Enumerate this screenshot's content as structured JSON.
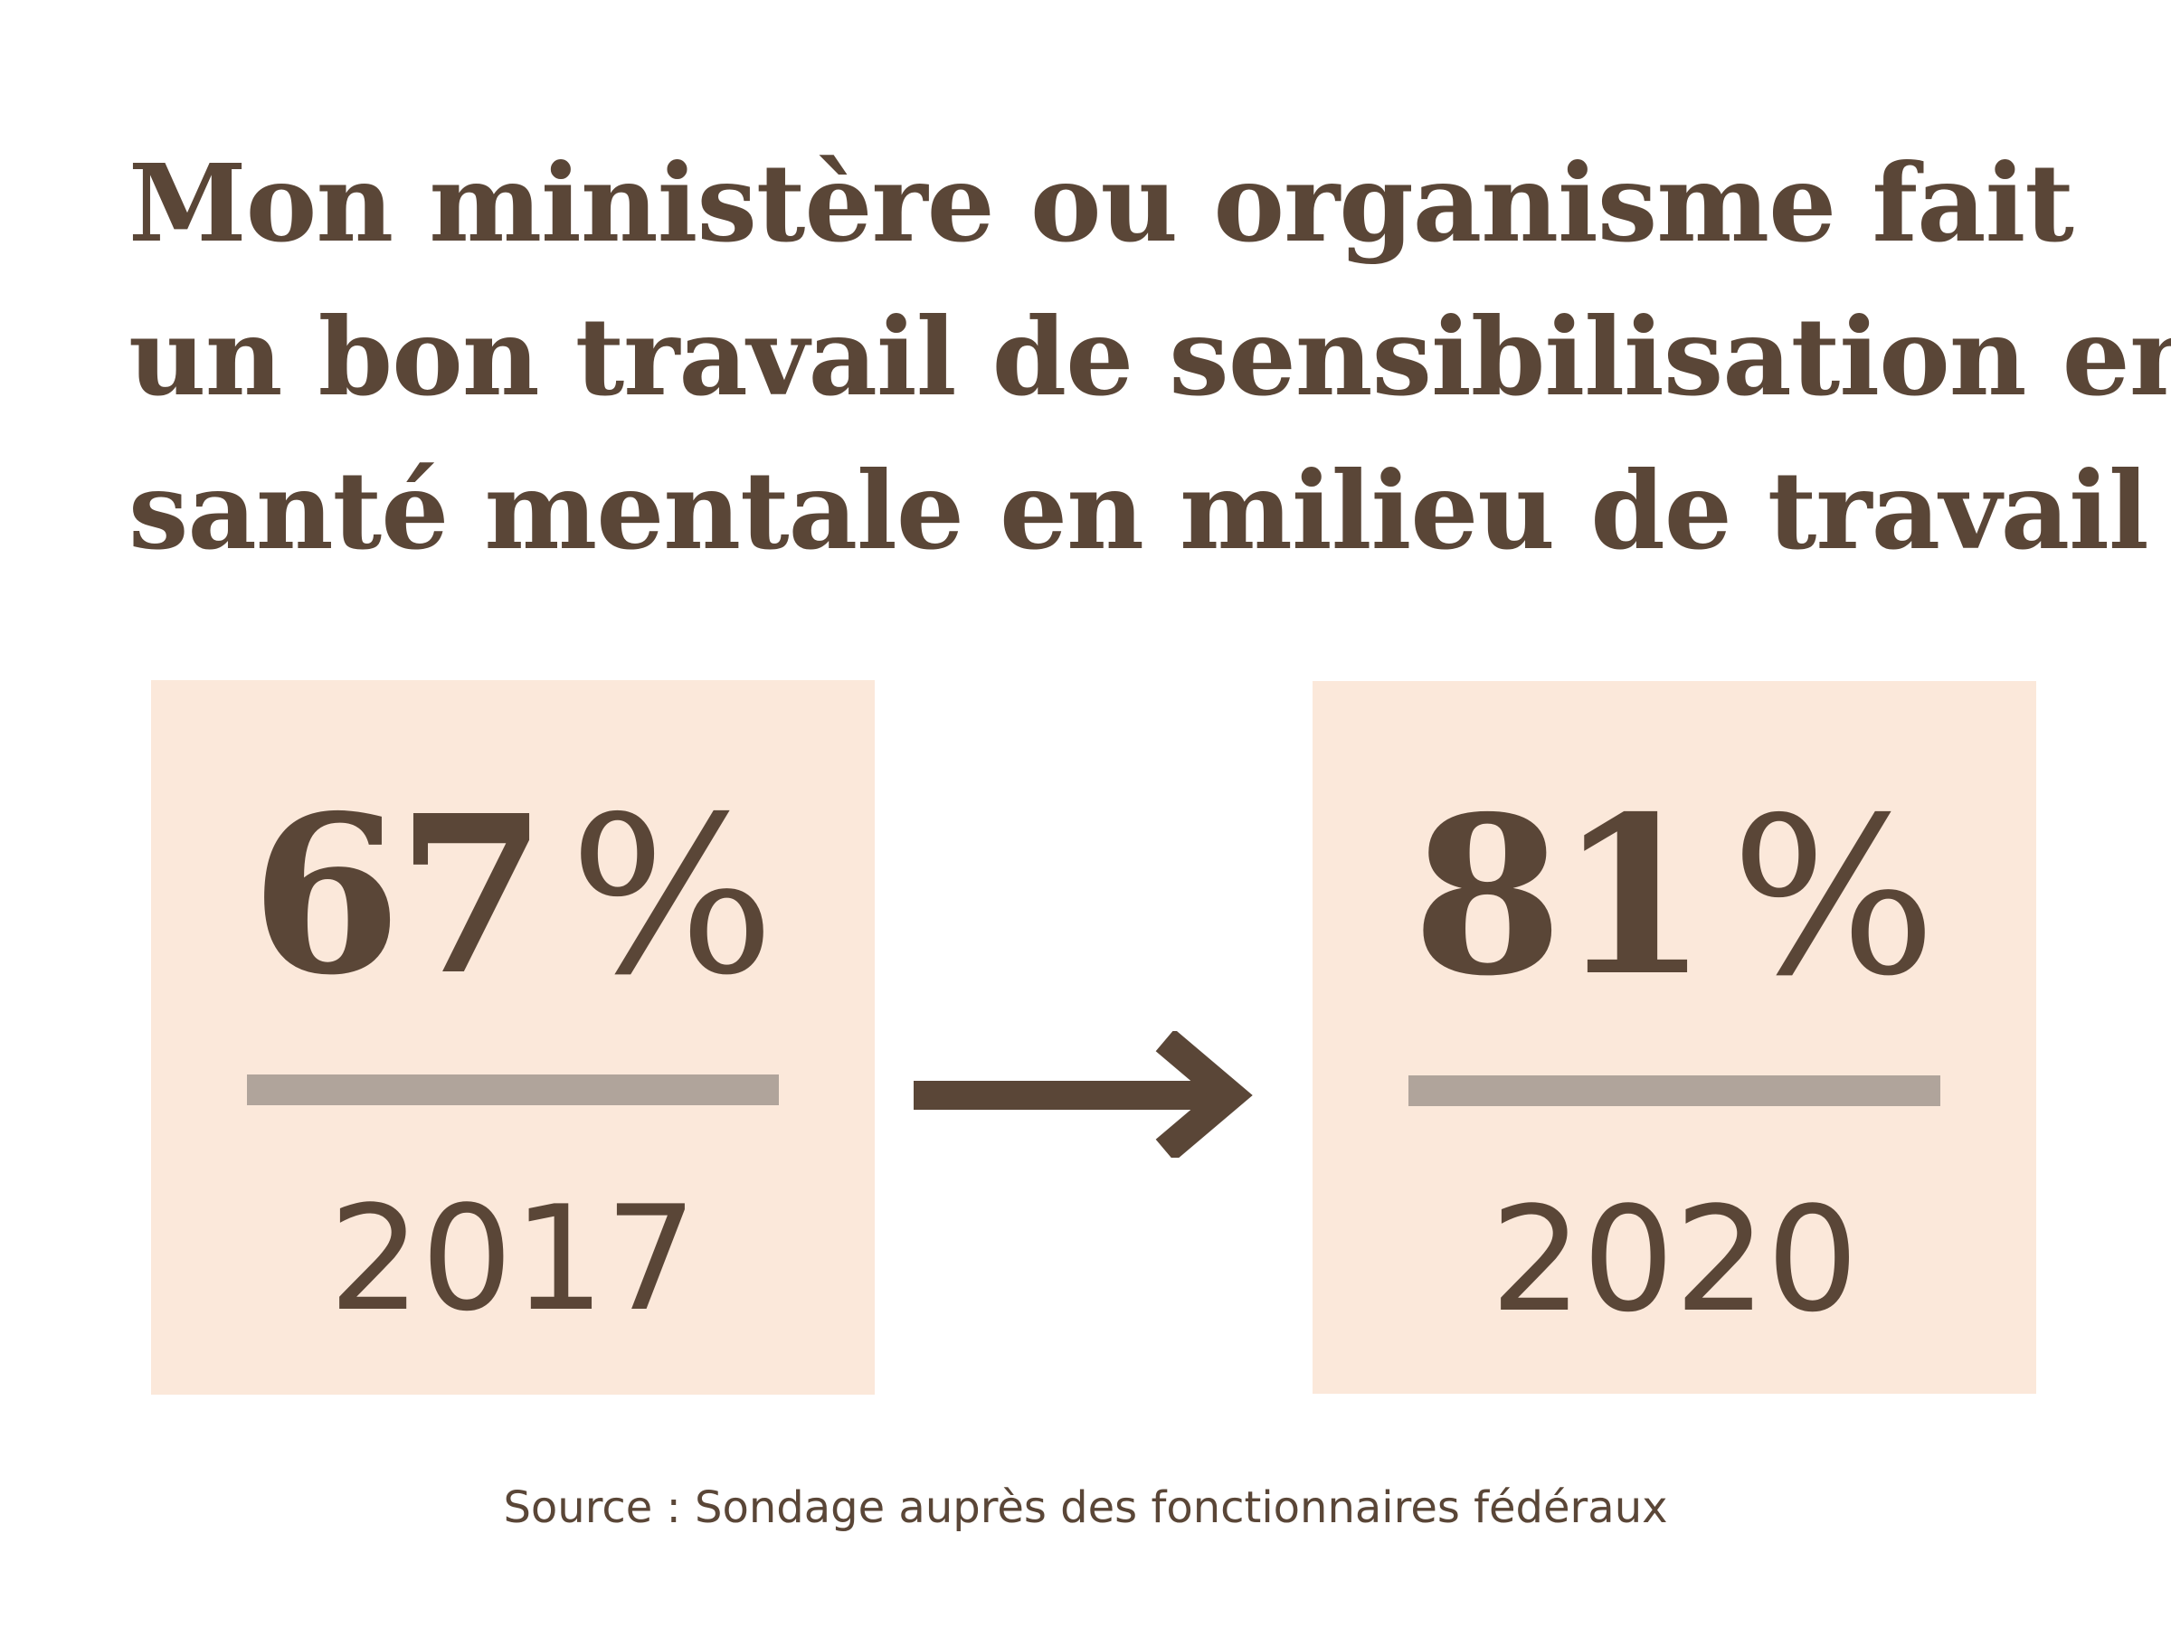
{
  "title": {
    "line1": "Mon ministère ou organisme fait",
    "line2": "un bon travail de sensibilisation en",
    "line3": "santé mentale en milieu de travail"
  },
  "stats": [
    {
      "value": "67",
      "unit": "%",
      "year": "2017"
    },
    {
      "value": "81",
      "unit": "%",
      "year": "2020"
    }
  ],
  "arrow_icon": "arrow-right-icon",
  "source": "Source : Sondage auprès des fonctionnaires fédéraux",
  "colors": {
    "text": "#5a4637",
    "box_background": "#fbe8da",
    "divider": "#b0a49b",
    "page_background": "#ffffff"
  }
}
